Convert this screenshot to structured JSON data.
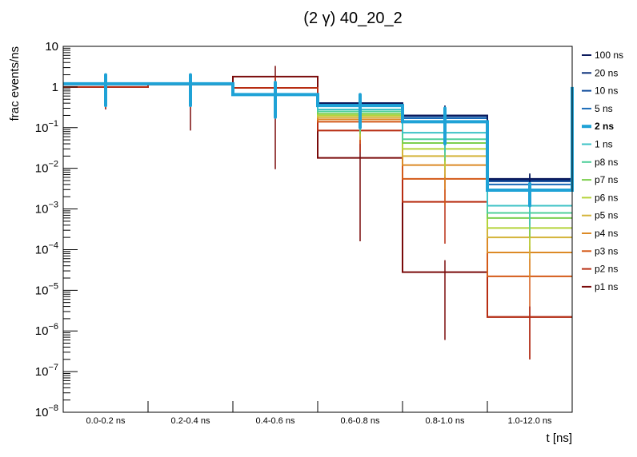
{
  "chart_data": {
    "type": "histogram-steps",
    "title": "(2 γ) 40_20_2",
    "xlabel": "t [ns]",
    "ylabel": "frac events/ns",
    "yscale": "log",
    "ylim": [
      1e-08,
      10
    ],
    "y_ticks": [
      {
        "value": 1e-08,
        "base": "10",
        "exp": "−8"
      },
      {
        "value": 1e-07,
        "base": "10",
        "exp": "−7"
      },
      {
        "value": 1e-06,
        "base": "10",
        "exp": "−6"
      },
      {
        "value": 1e-05,
        "base": "10",
        "exp": "−5"
      },
      {
        "value": 0.0001,
        "base": "10",
        "exp": "−4"
      },
      {
        "value": 0.001,
        "base": "10",
        "exp": "−3"
      },
      {
        "value": 0.01,
        "base": "10",
        "exp": "−2"
      },
      {
        "value": 0.1,
        "base": "10",
        "exp": "−1"
      },
      {
        "value": 1,
        "text": "1"
      },
      {
        "value": 10,
        "text": "10"
      }
    ],
    "categories": [
      "0.0-0.2 ns",
      "0.2-0.4 ns",
      "0.4-0.6 ns",
      "0.6-0.8 ns",
      "0.8-1.0 ns",
      "1.0-12.0 ns"
    ],
    "series": [
      {
        "name": "100 ns",
        "color": "#0b1a5c",
        "highlight": false,
        "values": [
          1.2,
          1.2,
          0.65,
          0.4,
          0.2,
          0.0055
        ],
        "err_lo": [
          0.5,
          0.5,
          0.2,
          0.12,
          0.06,
          0.002
        ],
        "err_hi": [
          2.0,
          2.0,
          1.3,
          0.7,
          0.35,
          0.0075
        ]
      },
      {
        "name": "20 ns",
        "color": "#0a2f7a",
        "highlight": false,
        "values": [
          1.2,
          1.2,
          0.65,
          0.4,
          0.2,
          0.0052
        ],
        "err_lo": [
          0.5,
          0.5,
          0.2,
          0.12,
          0.06,
          0.002
        ],
        "err_hi": [
          2.0,
          2.0,
          1.3,
          0.7,
          0.35,
          0.0072
        ]
      },
      {
        "name": "10 ns",
        "color": "#0c4a9a",
        "highlight": false,
        "values": [
          1.2,
          1.2,
          0.65,
          0.4,
          0.19,
          0.0048
        ],
        "err_lo": [
          0.5,
          0.5,
          0.2,
          0.12,
          0.06,
          0.0018
        ],
        "err_hi": [
          2.0,
          2.0,
          1.3,
          0.7,
          0.33,
          0.0068
        ]
      },
      {
        "name": "5 ns",
        "color": "#1a6bb8",
        "highlight": false,
        "values": [
          1.2,
          1.2,
          0.65,
          0.38,
          0.17,
          0.004
        ],
        "err_lo": [
          0.5,
          0.5,
          0.2,
          0.12,
          0.05,
          0.0015
        ],
        "err_hi": [
          2.0,
          2.0,
          1.3,
          0.68,
          0.3,
          0.006
        ]
      },
      {
        "name": "2 ns",
        "color": "#1fa2d6",
        "highlight": true,
        "values": [
          1.2,
          1.2,
          0.65,
          0.35,
          0.14,
          0.0029
        ],
        "err_lo": [
          0.35,
          0.35,
          0.18,
          0.1,
          0.04,
          0.0012
        ],
        "err_hi": [
          2.0,
          2.0,
          1.3,
          0.65,
          0.3,
          0.0042
        ]
      },
      {
        "name": "1 ns",
        "color": "#3cc2c6",
        "highlight": false,
        "values": [
          1.2,
          1.2,
          0.65,
          0.28,
          0.075,
          0.0012
        ],
        "err_lo": [
          0.5,
          0.5,
          0.2,
          0.09,
          0.025,
          0.0004
        ],
        "err_hi": [
          2.0,
          2.0,
          1.3,
          0.6,
          0.15,
          0.0025
        ]
      },
      {
        "name": "p8 ns",
        "color": "#4fcf9a",
        "highlight": false,
        "values": [
          1.2,
          1.2,
          0.65,
          0.25,
          0.052,
          0.0008
        ],
        "err_lo": [
          0.5,
          0.5,
          0.2,
          0.08,
          0.018,
          0.0003
        ],
        "err_hi": [
          2.0,
          2.0,
          1.3,
          0.58,
          0.11,
          0.0018
        ]
      },
      {
        "name": "p7 ns",
        "color": "#7ccf4e",
        "highlight": false,
        "values": [
          1.2,
          1.2,
          0.65,
          0.22,
          0.042,
          0.0006
        ],
        "err_lo": [
          0.5,
          0.5,
          0.2,
          0.07,
          0.015,
          0.0002
        ],
        "err_hi": [
          2.0,
          2.0,
          1.3,
          0.55,
          0.09,
          0.0014
        ]
      },
      {
        "name": "p6 ns",
        "color": "#b5d33a",
        "highlight": false,
        "values": [
          1.2,
          1.2,
          0.65,
          0.2,
          0.03,
          0.00034
        ],
        "err_lo": [
          0.5,
          0.5,
          0.2,
          0.06,
          0.01,
          0.0001
        ],
        "err_hi": [
          2.0,
          2.0,
          1.3,
          0.52,
          0.065,
          0.0009
        ]
      },
      {
        "name": "p5 ns",
        "color": "#d4b43a",
        "highlight": false,
        "values": [
          1.2,
          1.2,
          0.65,
          0.18,
          0.02,
          0.0002
        ],
        "err_lo": [
          0.5,
          0.5,
          0.2,
          0.05,
          0.006,
          6e-05
        ],
        "err_hi": [
          2.0,
          2.0,
          1.3,
          0.5,
          0.045,
          0.0006
        ]
      },
      {
        "name": "p4 ns",
        "color": "#dc8a26",
        "highlight": false,
        "values": [
          1.2,
          1.2,
          0.65,
          0.16,
          0.012,
          8.5e-05
        ],
        "err_lo": [
          0.5,
          0.5,
          0.2,
          0.05,
          0.003,
          2e-05
        ],
        "err_hi": [
          2.0,
          2.0,
          1.3,
          0.48,
          0.03,
          0.0003
        ]
      },
      {
        "name": "p3 ns",
        "color": "#d45a18",
        "highlight": false,
        "values": [
          1.2,
          1.2,
          0.65,
          0.14,
          0.0055,
          2.2e-05
        ],
        "err_lo": [
          0.5,
          0.5,
          0.2,
          0.04,
          0.0012,
          4e-06
        ],
        "err_hi": [
          2.0,
          2.0,
          1.3,
          0.45,
          0.018,
          0.00012
        ]
      },
      {
        "name": "p2 ns",
        "color": "#b82d12",
        "highlight": false,
        "values": [
          1.0,
          1.15,
          0.95,
          0.085,
          0.0015,
          2.2e-06
        ],
        "err_lo": [
          0.3,
          0.3,
          0.25,
          0.025,
          0.00014,
          2e-07
        ],
        "err_hi": [
          1.8,
          2.0,
          1.8,
          0.35,
          0.007,
          4e-06
        ]
      },
      {
        "name": "p1 ns",
        "color": "#7a0a0a",
        "highlight": false,
        "values": [
          1.0,
          1.15,
          1.8,
          0.018,
          2.8e-05,
          2.2e-06
        ],
        "err_lo": [
          0.28,
          0.085,
          0.0095,
          0.00016,
          6e-07,
          2e-07
        ],
        "err_hi": [
          1.9,
          2.0,
          3.3,
          0.4,
          5.5e-05,
          4e-06
        ]
      }
    ]
  }
}
